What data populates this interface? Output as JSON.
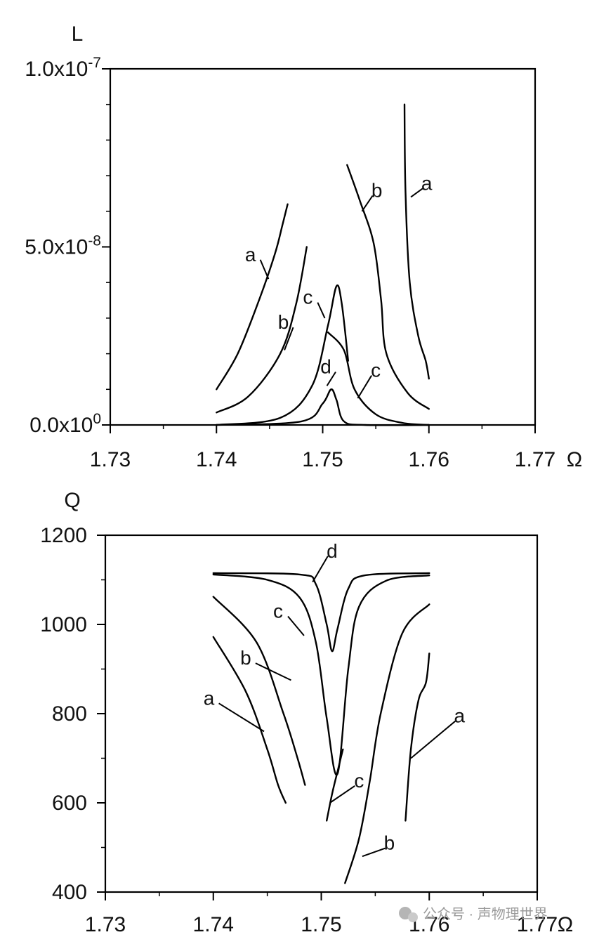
{
  "watermark": "公众号 · 声物理世界",
  "chart_data": [
    {
      "type": "line",
      "ylabel": "L",
      "xlabel": "Ω",
      "xlim": [
        1.73,
        1.77
      ],
      "ylim": [
        0,
        1e-07
      ],
      "x_ticks": [
        1.73,
        1.74,
        1.75,
        1.76,
        1.77
      ],
      "x_tick_labels": [
        "1.73",
        "1.74",
        "1.75",
        "1.76",
        "1.77"
      ],
      "y_ticks": [
        0,
        5e-08,
        1e-07
      ],
      "y_tick_labels": [
        {
          "mantissa": "0.0x10",
          "exp": "0"
        },
        {
          "mantissa": "5.0x10",
          "exp": "-8"
        },
        {
          "mantissa": "1.0x10",
          "exp": "-7"
        }
      ],
      "y_minor_step": 1e-08,
      "grid": false,
      "series": [
        {
          "name": "a",
          "x": [
            1.74,
            1.742,
            1.744,
            1.7455,
            1.7462,
            1.7467
          ],
          "y": [
            1e-08,
            2e-08,
            3.5e-08,
            4.8e-08,
            5.6e-08,
            6.2e-08
          ]
        },
        {
          "name": "b",
          "x": [
            1.74,
            1.743,
            1.746,
            1.7475,
            1.7485
          ],
          "y": [
            3.5e-09,
            8e-09,
            2e-08,
            3.4e-08,
            5e-08
          ]
        },
        {
          "name": "c",
          "x": [
            1.74,
            1.746,
            1.749,
            1.7505,
            1.7513,
            1.7518,
            1.7524
          ],
          "y": [
            0,
            2e-09,
            1.1e-08,
            2.8e-08,
            3.9e-08,
            3.4e-08,
            1.8e-08
          ]
        },
        {
          "name": "c",
          "x": [
            1.7505,
            1.752,
            1.753,
            1.755,
            1.7575,
            1.76
          ],
          "y": [
            2.6e-08,
            2.1e-08,
            1e-08,
            3e-09,
            6e-10,
            0
          ]
        },
        {
          "name": "d",
          "x": [
            1.74,
            1.748,
            1.75,
            1.7508,
            1.7513,
            1.752,
            1.754,
            1.76
          ],
          "y": [
            0,
            1e-09,
            6e-09,
            1e-08,
            7e-09,
            1e-09,
            0,
            0
          ]
        },
        {
          "name": "b",
          "x": [
            1.7523,
            1.7535,
            1.7548,
            1.7555,
            1.756,
            1.758,
            1.76
          ],
          "y": [
            7.3e-08,
            6.3e-08,
            5.1e-08,
            3.5e-08,
            2e-08,
            9e-09,
            4.5e-09
          ]
        },
        {
          "name": "a",
          "x": [
            1.7577,
            1.7578,
            1.7582,
            1.759,
            1.7597,
            1.76
          ],
          "y": [
            9e-08,
            6.5e-08,
            4e-08,
            2.5e-08,
            1.8e-08,
            1.3e-08
          ]
        }
      ],
      "annotations": [
        {
          "text": "a",
          "x": 1.7432,
          "y": 4.6e-08,
          "line_to": [
            1.7449,
            4.1e-08
          ]
        },
        {
          "text": "b",
          "x": 1.7463,
          "y": 2.7e-08,
          "line_to": [
            1.7464,
            2.1e-08
          ]
        },
        {
          "text": "c",
          "x": 1.7486,
          "y": 3.4e-08,
          "line_to": [
            1.7502,
            3e-08
          ]
        },
        {
          "text": "d",
          "x": 1.7503,
          "y": 1.45e-08,
          "line_to": [
            1.7504,
            1.1e-08
          ]
        },
        {
          "text": "c",
          "x": 1.755,
          "y": 1.35e-08,
          "line_to": [
            1.7533,
            7.5e-09
          ]
        },
        {
          "text": "b",
          "x": 1.7551,
          "y": 6.4e-08,
          "line_to": [
            1.7537,
            6e-08
          ]
        },
        {
          "text": "a",
          "x": 1.7598,
          "y": 6.6e-08,
          "line_to": [
            1.7583,
            6.4e-08
          ]
        }
      ]
    },
    {
      "type": "line",
      "ylabel": "Q",
      "xlabel": "Ω",
      "xlim": [
        1.73,
        1.77
      ],
      "ylim": [
        400,
        1200
      ],
      "x_ticks": [
        1.73,
        1.74,
        1.75,
        1.76,
        1.77
      ],
      "x_tick_labels": [
        "1.73",
        "1.74",
        "1.75",
        "1.76",
        "1.77"
      ],
      "y_ticks": [
        400,
        600,
        800,
        1000,
        1200
      ],
      "y_tick_labels": [
        "400",
        "600",
        "800",
        "1000",
        "1200"
      ],
      "y_minor_step": 100,
      "grid": false,
      "series": [
        {
          "name": "d",
          "x": [
            1.74,
            1.748,
            1.7495,
            1.7505,
            1.751,
            1.7515,
            1.7525,
            1.754,
            1.76
          ],
          "y": [
            1115,
            1112,
            1090,
            1000,
            940,
            990,
            1080,
            1110,
            1115
          ]
        },
        {
          "name": "c",
          "x": [
            1.74,
            1.745,
            1.748,
            1.7495,
            1.7505,
            1.7515,
            1.7525,
            1.7535,
            1.756,
            1.76
          ],
          "y": [
            1112,
            1100,
            1060,
            960,
            790,
            665,
            900,
            1040,
            1098,
            1110
          ]
        },
        {
          "name": "c",
          "x": [
            1.7505,
            1.751,
            1.7515,
            1.752
          ],
          "y": [
            560,
            620,
            670,
            720
          ]
        },
        {
          "name": "b",
          "x": [
            1.74,
            1.744,
            1.7465,
            1.7478,
            1.7485
          ],
          "y": [
            1062,
            960,
            800,
            700,
            640
          ]
        },
        {
          "name": "a",
          "x": [
            1.74,
            1.743,
            1.745,
            1.746,
            1.7467
          ],
          "y": [
            972,
            850,
            720,
            640,
            600
          ]
        },
        {
          "name": "b",
          "x": [
            1.7522,
            1.7535,
            1.7545,
            1.7555,
            1.7575,
            1.76
          ],
          "y": [
            420,
            520,
            650,
            800,
            980,
            1045
          ]
        },
        {
          "name": "a",
          "x": [
            1.7578,
            1.7583,
            1.759,
            1.7597,
            1.76
          ],
          "y": [
            560,
            720,
            830,
            870,
            935
          ]
        }
      ],
      "annotations": [
        {
          "text": "d",
          "x": 1.751,
          "y": 1150,
          "line_to": [
            1.7492,
            1095
          ]
        },
        {
          "text": "c",
          "x": 1.746,
          "y": 1015,
          "line_to": [
            1.7484,
            975
          ]
        },
        {
          "text": "b",
          "x": 1.743,
          "y": 910,
          "line_to": [
            1.7472,
            875
          ]
        },
        {
          "text": "a",
          "x": 1.7396,
          "y": 820,
          "line_to": [
            1.7447,
            760
          ]
        },
        {
          "text": "c",
          "x": 1.7535,
          "y": 635,
          "line_to": [
            1.7508,
            600
          ]
        },
        {
          "text": "b",
          "x": 1.7563,
          "y": 495,
          "line_to": [
            1.7538,
            480
          ]
        },
        {
          "text": "a",
          "x": 1.7628,
          "y": 780,
          "line_to": [
            1.7583,
            700
          ]
        }
      ]
    }
  ]
}
